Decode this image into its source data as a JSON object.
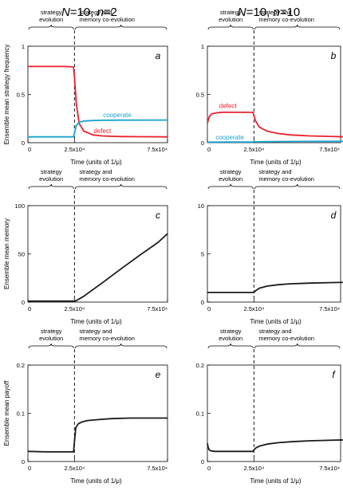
{
  "column_titles": [
    {
      "prefix": "N",
      "middle": "=10, ",
      "suffix_var": "n",
      "suffix": "=2"
    },
    {
      "prefix": "N",
      "middle": "=10, ",
      "suffix_var": "n",
      "suffix": "=10"
    }
  ],
  "phase_labels": {
    "left": [
      "strategy",
      "evolution"
    ],
    "right": [
      "strategy and",
      "memory co-evolution"
    ]
  },
  "xlabel": "Time (units of 1/μ)",
  "colors": {
    "defect": "#e8212b",
    "cooperate": "#1aa3d1",
    "black": "#1a1a1a"
  },
  "chart_data": [
    {
      "type": "line",
      "panel": "a",
      "ylabel": "Ensemble mean strategy frequency",
      "xlim": [
        0,
        75000
      ],
      "ylim": [
        0,
        1
      ],
      "xticks": [
        {
          "v": 0,
          "label": "0"
        },
        {
          "v": 25000,
          "label": "2.5x10⁴"
        },
        {
          "v": 75000,
          "label": "7.5x10⁴"
        }
      ],
      "yticks": [
        {
          "v": 0,
          "label": "0"
        },
        {
          "v": 0.5,
          "label": "0.5"
        },
        {
          "v": 1,
          "label": "1"
        }
      ],
      "series": [
        {
          "name": "defect",
          "color": "#e8212b",
          "x": [
            0,
            5000,
            10000,
            15000,
            20000,
            24500,
            25000,
            26000,
            27500,
            30000,
            35000,
            40000,
            45000,
            50000,
            60000,
            75000
          ],
          "y": [
            0.79,
            0.79,
            0.79,
            0.79,
            0.79,
            0.785,
            0.68,
            0.4,
            0.2,
            0.12,
            0.08,
            0.07,
            0.066,
            0.064,
            0.062,
            0.06
          ]
        },
        {
          "name": "cooperate",
          "color": "#1aa3d1",
          "x": [
            0,
            5000,
            10000,
            15000,
            20000,
            24500,
            25000,
            26000,
            27500,
            30000,
            35000,
            40000,
            45000,
            50000,
            60000,
            75000
          ],
          "y": [
            0.06,
            0.06,
            0.06,
            0.06,
            0.06,
            0.06,
            0.1,
            0.18,
            0.21,
            0.225,
            0.23,
            0.232,
            0.233,
            0.234,
            0.234,
            0.235
          ]
        }
      ],
      "annotations": [
        {
          "text": "cooperate",
          "series": "cooperate"
        },
        {
          "text": "defect",
          "series": "defect"
        }
      ]
    },
    {
      "type": "line",
      "panel": "b",
      "ylabel": "",
      "xlim": [
        0,
        75000
      ],
      "ylim": [
        0,
        1
      ],
      "xticks": [
        {
          "v": 0,
          "label": "0"
        },
        {
          "v": 25000,
          "label": "2.5x10⁴"
        },
        {
          "v": 75000,
          "label": "7.5x10⁴"
        }
      ],
      "yticks": [
        {
          "v": 0,
          "label": "0"
        },
        {
          "v": 0.5,
          "label": "0.5"
        },
        {
          "v": 1,
          "label": "1"
        }
      ],
      "series": [
        {
          "name": "defect",
          "color": "#e8212b",
          "x": [
            0,
            1000,
            2500,
            5000,
            8000,
            12000,
            18000,
            24500,
            25000,
            26000,
            28000,
            32000,
            38000,
            45000,
            55000,
            65000,
            75000
          ],
          "y": [
            0.2,
            0.27,
            0.3,
            0.31,
            0.315,
            0.315,
            0.315,
            0.315,
            0.28,
            0.22,
            0.16,
            0.12,
            0.095,
            0.08,
            0.07,
            0.065,
            0.06
          ]
        },
        {
          "name": "cooperate",
          "color": "#1aa3d1",
          "x": [
            0,
            2000,
            10000,
            24500,
            25000,
            30000,
            40000,
            50000,
            75000
          ],
          "y": [
            0.005,
            0.006,
            0.007,
            0.007,
            0.008,
            0.01,
            0.012,
            0.013,
            0.014
          ]
        }
      ],
      "annotations": [
        {
          "text": "defect",
          "series": "defect"
        },
        {
          "text": "cooperate",
          "series": "cooperate"
        }
      ]
    },
    {
      "type": "line",
      "panel": "c",
      "ylabel": "Ensemble mean memory",
      "xlim": [
        0,
        75000
      ],
      "ylim": [
        0,
        100
      ],
      "xticks": [
        {
          "v": 0,
          "label": "0"
        },
        {
          "v": 25000,
          "label": "2.5x10⁴"
        },
        {
          "v": 75000,
          "label": "7.5x10⁴"
        }
      ],
      "yticks": [
        {
          "v": 0,
          "label": "0"
        },
        {
          "v": 50,
          "label": "50"
        },
        {
          "v": 100,
          "label": "100"
        }
      ],
      "series": [
        {
          "name": "",
          "color": "#1a1a1a",
          "x": [
            0,
            10000,
            20000,
            25000,
            26000,
            30000,
            40000,
            50000,
            60000,
            70000,
            75000
          ],
          "y": [
            1,
            1,
            1,
            1,
            1.6,
            6,
            20,
            34.5,
            48.5,
            62,
            71
          ]
        }
      ],
      "annotations": []
    },
    {
      "type": "line",
      "panel": "d",
      "ylabel": "",
      "xlim": [
        0,
        75000
      ],
      "ylim": [
        0,
        10
      ],
      "xticks": [
        {
          "v": 0,
          "label": "0"
        },
        {
          "v": 25000,
          "label": "2.5x10⁴"
        },
        {
          "v": 75000,
          "label": "7.5x10⁴"
        }
      ],
      "yticks": [
        {
          "v": 0,
          "label": "0"
        },
        {
          "v": 5,
          "label": "5"
        },
        {
          "v": 10,
          "label": "10"
        }
      ],
      "series": [
        {
          "name": "",
          "color": "#1a1a1a",
          "x": [
            0,
            10000,
            20000,
            25000,
            26000,
            28000,
            32000,
            38000,
            45000,
            55000,
            65000,
            75000
          ],
          "y": [
            1,
            1,
            1,
            1,
            1.2,
            1.45,
            1.65,
            1.8,
            1.9,
            1.97,
            2.02,
            2.05
          ]
        }
      ],
      "annotations": []
    },
    {
      "type": "line",
      "panel": "e",
      "ylabel": "Ensemble mean payoff",
      "xlim": [
        0,
        75000
      ],
      "ylim": [
        0,
        0.2
      ],
      "xticks": [
        {
          "v": 0,
          "label": "0"
        },
        {
          "v": 25000,
          "label": "2.5x10⁴"
        },
        {
          "v": 75000,
          "label": "7.5x10⁴"
        }
      ],
      "yticks": [
        {
          "v": 0,
          "label": "0"
        },
        {
          "v": 0.1,
          "label": "0.1"
        },
        {
          "v": 0.2,
          "label": "0.2"
        }
      ],
      "series": [
        {
          "name": "",
          "color": "#1a1a1a",
          "x": [
            0,
            10000,
            20000,
            24500,
            25000,
            25700,
            27000,
            29000,
            32000,
            38000,
            45000,
            55000,
            65000,
            75000
          ],
          "y": [
            0.021,
            0.02,
            0.02,
            0.02,
            0.04,
            0.07,
            0.078,
            0.082,
            0.085,
            0.087,
            0.089,
            0.09,
            0.09,
            0.09
          ]
        }
      ],
      "annotations": []
    },
    {
      "type": "line",
      "panel": "f",
      "ylabel": "",
      "xlim": [
        0,
        75000
      ],
      "ylim": [
        0,
        0.2
      ],
      "xticks": [
        {
          "v": 0,
          "label": "0"
        },
        {
          "v": 25000,
          "label": "2.5x10⁴"
        },
        {
          "v": 75000,
          "label": "7.5x10⁴"
        }
      ],
      "yticks": [
        {
          "v": 0,
          "label": "0"
        },
        {
          "v": 0.1,
          "label": "0.1"
        },
        {
          "v": 0.2,
          "label": "0.2"
        }
      ],
      "series": [
        {
          "name": "",
          "color": "#1a1a1a",
          "x": [
            0,
            400,
            1000,
            2000,
            4000,
            10000,
            20000,
            24500,
            25000,
            26000,
            28000,
            32000,
            38000,
            45000,
            55000,
            65000,
            75000
          ],
          "y": [
            0.038,
            0.03,
            0.024,
            0.022,
            0.021,
            0.021,
            0.021,
            0.021,
            0.024,
            0.028,
            0.032,
            0.036,
            0.039,
            0.041,
            0.043,
            0.044,
            0.045
          ]
        }
      ],
      "annotations": []
    }
  ]
}
